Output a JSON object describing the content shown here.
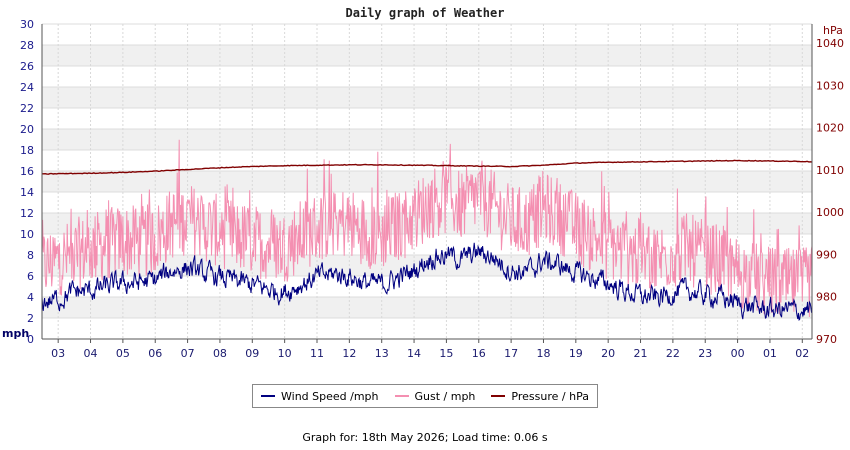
{
  "chart_data": {
    "type": "line",
    "title": "Daily graph of Weather",
    "ylabel_left": "mph",
    "ylabel_right": "hPa",
    "y_left_range": [
      0,
      30
    ],
    "y_left_ticks": [
      "0",
      "2",
      "4",
      "6",
      "8",
      "10",
      "12",
      "14",
      "16",
      "18",
      "20",
      "22",
      "24",
      "26",
      "28",
      "30"
    ],
    "y_right_range": [
      970,
      1044.5
    ],
    "y_right_ticks": [
      "970",
      "980",
      "990",
      "1000",
      "1010",
      "1020",
      "1030",
      "1040"
    ],
    "x_ticks": [
      "03",
      "04",
      "05",
      "06",
      "07",
      "08",
      "09",
      "10",
      "11",
      "12",
      "13",
      "14",
      "15",
      "16",
      "17",
      "18",
      "19",
      "20",
      "21",
      "22",
      "23",
      "00",
      "01",
      "02"
    ],
    "x_range_hours": [
      2.5,
      26.3
    ],
    "grid": true,
    "legend_position": "bottom-center",
    "series": [
      {
        "name": "Wind Speed /mph",
        "axis": "left",
        "color": "#000080",
        "x_hours": [
          2.5,
          3,
          3.5,
          4,
          4.5,
          5,
          5.5,
          6,
          6.5,
          7,
          7.5,
          8,
          8.5,
          9,
          9.5,
          10,
          10.5,
          11,
          11.5,
          12,
          12.5,
          13,
          13.5,
          14,
          14.5,
          15,
          15.5,
          16,
          16.5,
          17,
          17.5,
          18,
          18.5,
          19,
          19.5,
          20,
          20.5,
          21,
          21.5,
          22,
          22.5,
          23,
          23.5,
          24,
          24.5,
          25,
          25.5,
          26,
          26.3
        ],
        "values": [
          3.5,
          3.8,
          4.5,
          4.6,
          5.0,
          5.3,
          5.4,
          5.6,
          6.5,
          6.8,
          6.2,
          5.9,
          5.5,
          5.2,
          4.7,
          4.5,
          5.2,
          5.9,
          6.2,
          6.0,
          5.3,
          5.2,
          5.8,
          6.5,
          7.8,
          8.0,
          7.6,
          8.3,
          7.7,
          6.5,
          6.3,
          7.5,
          7.0,
          6.3,
          5.8,
          5.3,
          4.6,
          4.1,
          3.9,
          4.4,
          4.6,
          4.2,
          4.0,
          3.4,
          3.0,
          2.8,
          2.8,
          2.7,
          2.8
        ]
      },
      {
        "name": "Gust / mph",
        "axis": "left",
        "color": "#f48fb1",
        "x_hours": [
          2.5,
          3,
          3.5,
          4,
          4.5,
          5,
          5.5,
          6,
          6.5,
          7,
          7.5,
          8,
          8.5,
          9,
          9.5,
          10,
          10.5,
          11,
          11.5,
          12,
          12.5,
          13,
          13.5,
          14,
          14.5,
          15,
          15.5,
          16,
          16.5,
          17,
          17.5,
          18,
          18.5,
          19,
          19.5,
          20,
          20.5,
          21,
          21.5,
          22,
          22.5,
          23,
          23.5,
          24,
          24.5,
          25,
          25.5,
          26,
          26.3
        ],
        "values": [
          7.0,
          7.5,
          8.0,
          8.6,
          9.0,
          9.4,
          9.2,
          9.5,
          11.0,
          11.5,
          10.8,
          10.2,
          9.8,
          9.4,
          9.0,
          8.8,
          9.8,
          10.6,
          11.2,
          11.0,
          10.2,
          10.0,
          10.8,
          11.6,
          13.0,
          13.4,
          12.6,
          13.8,
          12.4,
          11.2,
          11.0,
          12.6,
          11.6,
          10.6,
          9.8,
          9.0,
          8.4,
          8.0,
          7.6,
          8.2,
          8.5,
          7.8,
          7.4,
          6.4,
          5.8,
          5.4,
          5.2,
          5.2,
          5.5
        ],
        "peak_max": 19.5
      },
      {
        "name": "Pressure / hPa",
        "axis": "right",
        "color": "#800000",
        "x_hours": [
          2.5,
          3,
          4,
          5,
          6,
          7,
          8,
          9,
          10,
          11,
          12,
          13,
          14,
          15,
          16,
          17,
          18,
          19,
          20,
          21,
          22,
          23,
          24,
          25,
          26,
          26.3
        ],
        "values": [
          1009.0,
          1009.1,
          1009.2,
          1009.4,
          1009.7,
          1010.1,
          1010.5,
          1010.8,
          1011.0,
          1011.1,
          1011.2,
          1011.2,
          1011.1,
          1011.0,
          1010.9,
          1010.8,
          1011.1,
          1011.6,
          1011.8,
          1011.9,
          1012.0,
          1012.1,
          1012.2,
          1012.1,
          1012.0,
          1011.9
        ]
      }
    ]
  },
  "legend": {
    "wind_label": "Wind Speed /mph",
    "gust_label": "Gust / mph",
    "pressure_label": "Pressure / hPa"
  },
  "footer": {
    "text": "Graph for: 18th May 2026; Load time: 0.06 s"
  }
}
